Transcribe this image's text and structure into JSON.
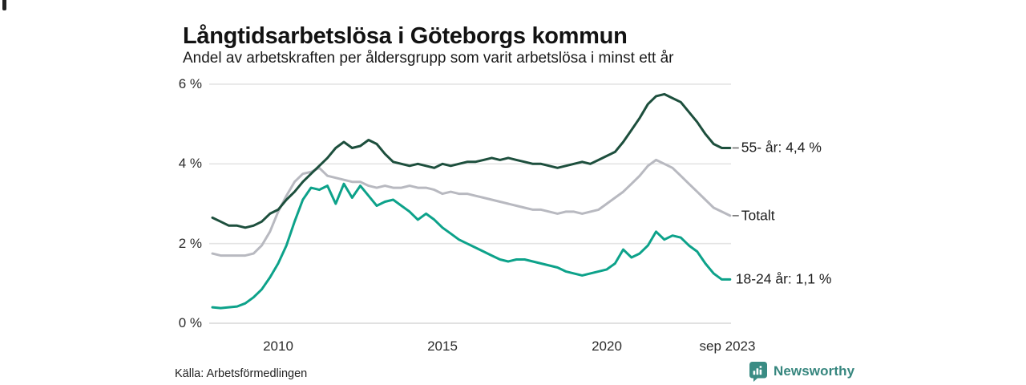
{
  "header": {
    "title": "Långtidsarbetslösa i Göteborgs kommun",
    "subtitle": "Andel av arbetskraften per åldersgrupp som varit arbetslösa i minst ett år"
  },
  "footer": {
    "source": "Källa: Arbetsförmedlingen",
    "brand": "Newsworthy"
  },
  "colors": {
    "series_55": "#1d4f3d",
    "series_total": "#b8b9c0",
    "series_18_24": "#0da28a",
    "gridline": "#e4e4e4",
    "baseline": "#d7d7d7",
    "brand_teal": "#3a8c84",
    "text": "#1a1a1a"
  },
  "chart_data": {
    "type": "line",
    "title": "Långtidsarbetslösa i Göteborgs kommun",
    "subtitle": "Andel av arbetskraften per åldersgrupp som varit arbetslösa i minst ett år",
    "unit": "%",
    "grid": true,
    "x_axis": {
      "ticks": [
        "2010",
        "2015",
        "2020",
        "sep 2023"
      ],
      "tick_years": [
        2010,
        2015,
        2020,
        2023.67
      ],
      "range": [
        2008,
        2023.75
      ]
    },
    "y_axis": {
      "ticks": [
        "0 %",
        "2 %",
        "4 %",
        "6 %"
      ],
      "tick_values": [
        0,
        2,
        4,
        6
      ],
      "range": [
        0,
        6
      ]
    },
    "x": [
      2008,
      2008.25,
      2008.5,
      2008.75,
      2009,
      2009.25,
      2009.5,
      2009.75,
      2010,
      2010.25,
      2010.5,
      2010.75,
      2011,
      2011.25,
      2011.5,
      2011.75,
      2012,
      2012.25,
      2012.5,
      2012.75,
      2013,
      2013.25,
      2013.5,
      2013.75,
      2014,
      2014.25,
      2014.5,
      2014.75,
      2015,
      2015.25,
      2015.5,
      2015.75,
      2016,
      2016.25,
      2016.5,
      2016.75,
      2017,
      2017.25,
      2017.5,
      2017.75,
      2018,
      2018.25,
      2018.5,
      2018.75,
      2019,
      2019.25,
      2019.5,
      2019.75,
      2020,
      2020.25,
      2020.5,
      2020.75,
      2021,
      2021.25,
      2021.5,
      2021.75,
      2022,
      2022.25,
      2022.5,
      2022.75,
      2023,
      2023.25,
      2023.5,
      2023.75
    ],
    "series": [
      {
        "name": "55- år",
        "label": "55- år: 4,4 %",
        "last_value_text": "4,4 %",
        "color": "#1d4f3d",
        "values": [
          2.65,
          2.55,
          2.45,
          2.45,
          2.4,
          2.45,
          2.55,
          2.75,
          2.85,
          3.1,
          3.3,
          3.55,
          3.75,
          3.95,
          4.15,
          4.4,
          4.55,
          4.4,
          4.45,
          4.6,
          4.5,
          4.25,
          4.05,
          4.0,
          3.95,
          4.0,
          3.95,
          3.9,
          4.0,
          3.95,
          4.0,
          4.05,
          4.05,
          4.1,
          4.15,
          4.1,
          4.15,
          4.1,
          4.05,
          4.0,
          4.0,
          3.95,
          3.9,
          3.95,
          4.0,
          4.05,
          4.0,
          4.1,
          4.2,
          4.3,
          4.55,
          4.85,
          5.15,
          5.5,
          5.7,
          5.75,
          5.65,
          5.55,
          5.3,
          5.05,
          4.75,
          4.5,
          4.4,
          4.4
        ]
      },
      {
        "name": "Totalt",
        "label": "Totalt",
        "last_value_text": "",
        "color": "#b8b9c0",
        "values": [
          1.75,
          1.7,
          1.7,
          1.7,
          1.7,
          1.75,
          1.95,
          2.3,
          2.8,
          3.2,
          3.55,
          3.75,
          3.8,
          3.9,
          3.7,
          3.65,
          3.6,
          3.55,
          3.55,
          3.45,
          3.4,
          3.45,
          3.4,
          3.4,
          3.45,
          3.4,
          3.4,
          3.35,
          3.25,
          3.3,
          3.25,
          3.25,
          3.2,
          3.15,
          3.1,
          3.05,
          3.0,
          2.95,
          2.9,
          2.85,
          2.85,
          2.8,
          2.75,
          2.8,
          2.8,
          2.75,
          2.8,
          2.85,
          3.0,
          3.15,
          3.3,
          3.5,
          3.7,
          3.95,
          4.1,
          4.0,
          3.9,
          3.7,
          3.5,
          3.3,
          3.1,
          2.9,
          2.8,
          2.7
        ]
      },
      {
        "name": "18-24 år",
        "label": "18-24 år: 1,1 %",
        "last_value_text": "1,1 %",
        "color": "#0da28a",
        "values": [
          0.4,
          0.38,
          0.4,
          0.42,
          0.5,
          0.65,
          0.85,
          1.15,
          1.5,
          1.95,
          2.55,
          3.1,
          3.4,
          3.35,
          3.45,
          3.0,
          3.5,
          3.15,
          3.45,
          3.2,
          2.95,
          3.05,
          3.1,
          2.95,
          2.8,
          2.6,
          2.75,
          2.6,
          2.4,
          2.25,
          2.1,
          2.0,
          1.9,
          1.8,
          1.7,
          1.6,
          1.55,
          1.6,
          1.6,
          1.55,
          1.5,
          1.45,
          1.4,
          1.3,
          1.25,
          1.2,
          1.25,
          1.3,
          1.35,
          1.5,
          1.85,
          1.65,
          1.75,
          1.95,
          2.3,
          2.1,
          2.2,
          2.15,
          1.95,
          1.8,
          1.5,
          1.25,
          1.1,
          1.1
        ]
      }
    ],
    "legend_position": "right-of-line-ends"
  }
}
